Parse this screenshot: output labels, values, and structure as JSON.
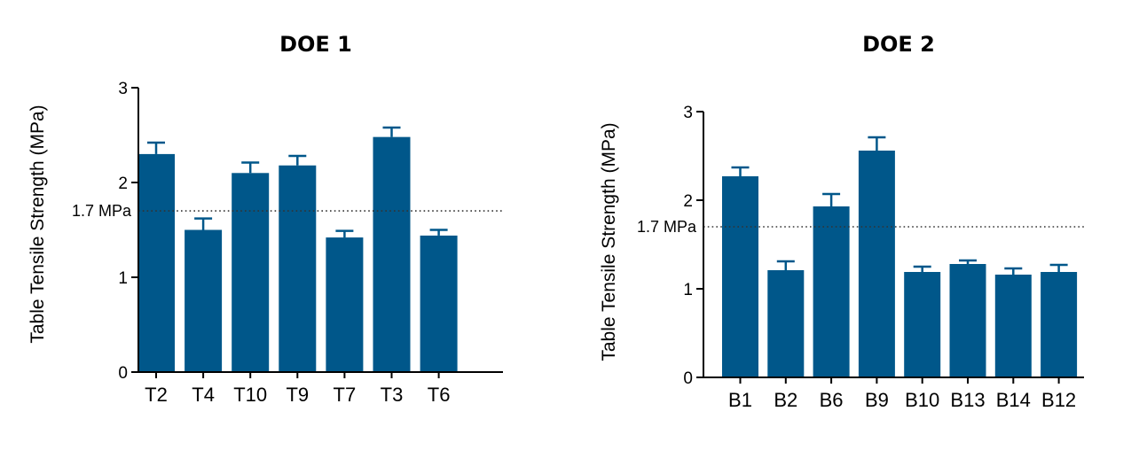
{
  "chart_data": [
    {
      "type": "bar",
      "title": "DOE 1",
      "ylabel": "Table Tensile Strength (MPa)",
      "xlabel": "",
      "ylim": [
        0,
        3
      ],
      "yticks": [
        0,
        1,
        2,
        3
      ],
      "categories": [
        "T2",
        "T4",
        "T10",
        "T9",
        "T7",
        "T3",
        "T6"
      ],
      "values": [
        2.3,
        1.5,
        2.1,
        2.18,
        1.42,
        2.48,
        1.44
      ],
      "error": [
        0.12,
        0.12,
        0.11,
        0.1,
        0.07,
        0.1,
        0.06
      ],
      "reference_line": {
        "value": 1.7,
        "label": "1.7 MPa"
      },
      "bar_color": "#00578a",
      "grid": false,
      "legend": "none"
    },
    {
      "type": "bar",
      "title": "DOE 2",
      "ylabel": "Table Tensile Strength (MPa)",
      "xlabel": "",
      "ylim": [
        0,
        3
      ],
      "yticks": [
        0,
        1,
        2,
        3
      ],
      "categories": [
        "B1",
        "B2",
        "B6",
        "B9",
        "B10",
        "B13",
        "B14",
        "B12"
      ],
      "values": [
        2.27,
        1.21,
        1.93,
        2.56,
        1.19,
        1.28,
        1.16,
        1.19
      ],
      "error": [
        0.1,
        0.1,
        0.14,
        0.15,
        0.06,
        0.04,
        0.07,
        0.08
      ],
      "reference_line": {
        "value": 1.7,
        "label": "1.7 MPa"
      },
      "bar_color": "#00578a",
      "grid": false,
      "legend": "none"
    }
  ]
}
